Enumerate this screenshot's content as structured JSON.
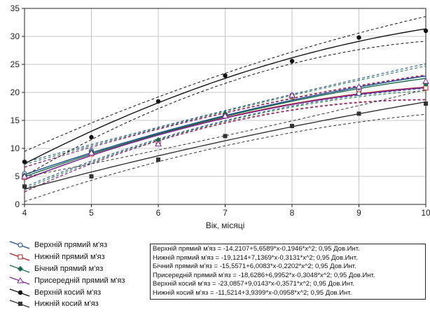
{
  "chart_data": {
    "type": "scatter",
    "xlabel": "Вік, місяці",
    "ylabel": "",
    "xlim": [
      4,
      10
    ],
    "ylim": [
      0,
      35
    ],
    "x_ticks": [
      "4",
      "5",
      "6",
      "7",
      "8",
      "9",
      "10"
    ],
    "y_ticks": [
      "0",
      "5",
      "10",
      "15",
      "20",
      "25",
      "30",
      "35"
    ],
    "grid": true,
    "confidence_band": "0,95 Дов.Инт.",
    "legend_position": "bottom-left",
    "x": [
      4,
      5,
      6,
      7,
      8,
      9,
      10
    ],
    "series": [
      {
        "name": "Верхній прямий м'яз",
        "marker": "circle-open",
        "color": "#1a4a8a",
        "coef": [
          -14.2107,
          5.6589,
          -0.1946
        ],
        "values": [
          5.5,
          9.6,
          11.2,
          16.0,
          19.5,
          19.8,
          21.0
        ]
      },
      {
        "name": "Нижній прямий м'яз",
        "marker": "square-open",
        "color": "#b02020",
        "coef": [
          -19.1214,
          7.1369,
          -0.3131
        ],
        "values": [
          4.8,
          9.0,
          11.0,
          15.8,
          19.2,
          20.5,
          20.8
        ]
      },
      {
        "name": "Бічний прямий м'яз",
        "marker": "diamond",
        "color": "#1a6a4a",
        "coef": [
          -15.5571,
          6.0083,
          -0.2202
        ],
        "values": [
          5.2,
          9.4,
          11.5,
          16.2,
          19.3,
          20.8,
          21.5
        ]
      },
      {
        "name": "Присередній прямий м'яз",
        "marker": "triangle-open",
        "color": "#7a2a9a",
        "coef": [
          -18.6286,
          6.9952,
          -0.3048
        ],
        "values": [
          5.0,
          9.2,
          10.8,
          15.8,
          19.5,
          21.0,
          22.0
        ]
      },
      {
        "name": "Верхній косий м'яз",
        "marker": "circle-filled",
        "color": "#111111",
        "coef": [
          -23.0857,
          9.0143,
          -0.3571
        ],
        "values": [
          7.6,
          12.0,
          18.4,
          23.0,
          25.6,
          29.8,
          31.0
        ]
      },
      {
        "name": "Нижній косий м'яз",
        "marker": "square-filled",
        "color": "#333333",
        "coef": [
          -11.5214,
          3.9399,
          -0.0958
        ],
        "values": [
          3.2,
          5.0,
          8.0,
          12.2,
          14.0,
          16.2,
          18.0
        ]
      }
    ],
    "equations": [
      "Верхній прямий м'яз = -14,2107+5,6589*x-0,1946*x^2; 0,95 Дов.Инт.",
      "Нижній прямий м'яз = -19,1214+7,1369*x-0,3131*x^2; 0,95 Дов.Инт.",
      "Бічний прямий м'яз = -15,5571+6,0083*x-0,2202*x^2; 0,95 Дов.Инт.",
      "Присередній прямий м'яз = -18,6286+6,9952*x-0,3048*x^2; 0,95 Дов.Инт.",
      "Верхній косий м'яз = -23,0857+9,0143*x-0,3571*x^2; 0,95 Дов.Инт.",
      "Нижній косий м'яз = -11,5214+3,9399*x-0,0958*x^2; 0,95 Дов.Инт."
    ]
  }
}
